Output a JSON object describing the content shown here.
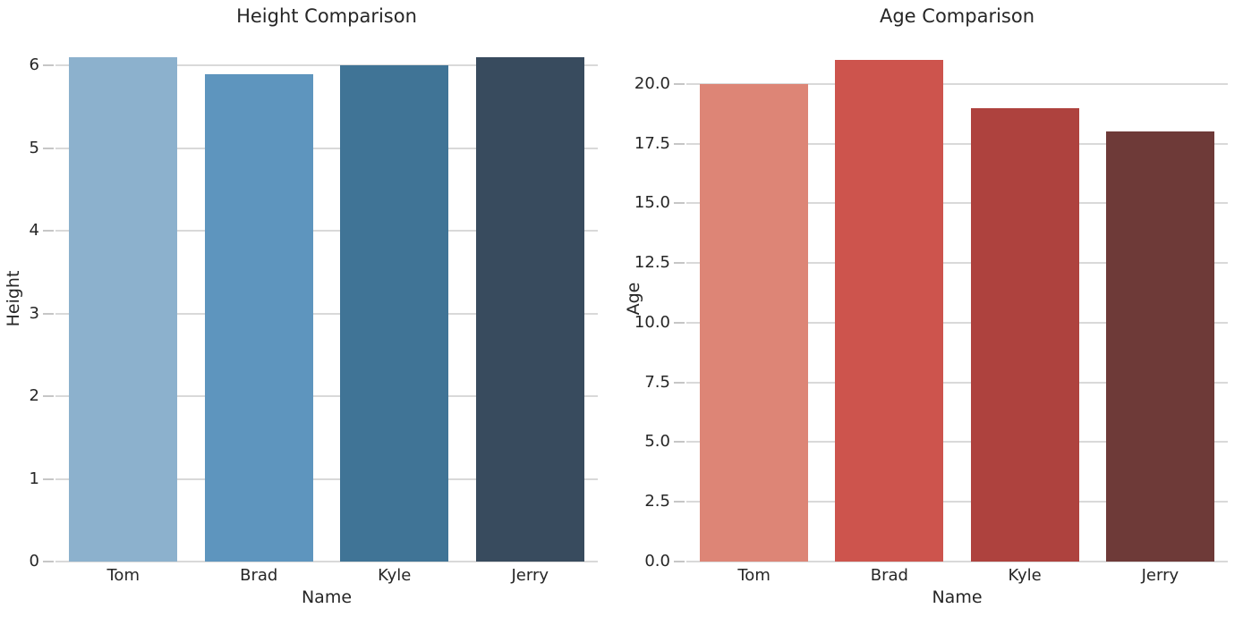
{
  "figure": {
    "background": "#ffffff",
    "text_color": "#262626",
    "grid_color": "#d9d9d9",
    "tick_color": "#c6c6c6"
  },
  "chart_data": [
    {
      "type": "bar",
      "title": "Height Comparison",
      "xlabel": "Name",
      "ylabel": "Height",
      "categories": [
        "Tom",
        "Brad",
        "Kyle",
        "Jerry"
      ],
      "values": [
        6.1,
        5.9,
        6.0,
        6.1
      ],
      "ylim": [
        0,
        6.36
      ],
      "yticks": [
        0,
        1,
        2,
        3,
        4,
        5,
        6
      ],
      "ytick_labels": [
        "0",
        "1",
        "2",
        "3",
        "4",
        "5",
        "6"
      ],
      "grid": "horizontal",
      "legend": "none",
      "palette": [
        "#8cb1cd",
        "#5e95be",
        "#407496",
        "#384b5e"
      ]
    },
    {
      "type": "bar",
      "title": "Age Comparison",
      "xlabel": "Name",
      "ylabel": "Age",
      "categories": [
        "Tom",
        "Brad",
        "Kyle",
        "Jerry"
      ],
      "values": [
        20,
        21,
        19,
        18
      ],
      "ylim": [
        0,
        22.02
      ],
      "yticks": [
        0,
        2.5,
        5,
        7.5,
        10,
        12.5,
        15,
        17.5,
        20
      ],
      "ytick_labels": [
        "0.0",
        "2.5",
        "5.0",
        "7.5",
        "10.0",
        "12.5",
        "15.0",
        "17.5",
        "20.0"
      ],
      "grid": "horizontal",
      "legend": "none",
      "palette": [
        "#dd8576",
        "#cd544d",
        "#ae423e",
        "#6e3a38"
      ]
    }
  ]
}
